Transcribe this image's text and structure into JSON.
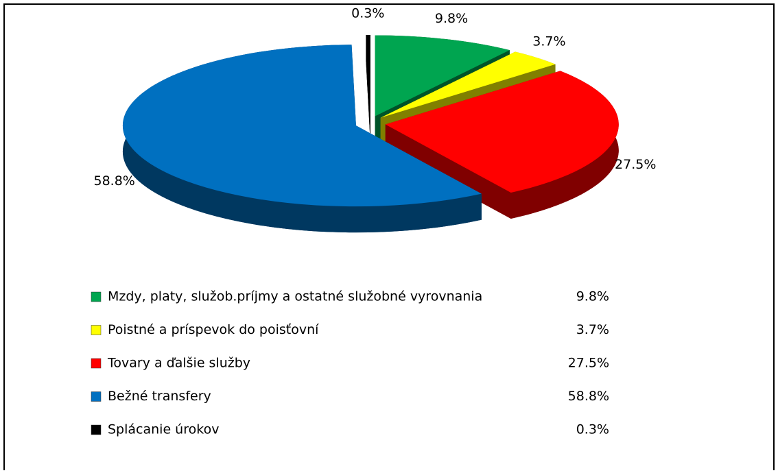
{
  "chart_data": {
    "type": "pie",
    "categories": [
      "Mzdy, platy, služob.príjmy a ostatné služobné vyrovnania",
      "Poistné a príspevok do poisťovní",
      "Tovary a ďalšie služby",
      "Bežné transfery",
      "Splácanie úrokov"
    ],
    "values": [
      9.8,
      3.7,
      27.5,
      58.8,
      0.3
    ],
    "value_labels": [
      "9.8%",
      "3.7%",
      "27.5%",
      "58.8%",
      "0.3%"
    ],
    "colors": [
      "#00a550",
      "#ffff00",
      "#ff0000",
      "#0070c0",
      "#000000"
    ],
    "legend": "bottom"
  }
}
